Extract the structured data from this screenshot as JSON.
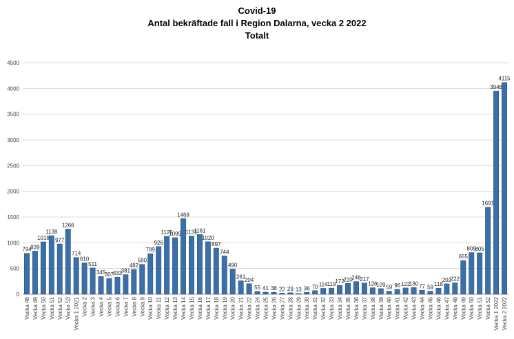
{
  "chart_data": {
    "type": "bar",
    "title": "Covid-19",
    "subtitle": "Antal bekräftade fall i Region Dalarna, vecka 2 2022",
    "subtitle2": "Totalt",
    "xlabel": "",
    "ylabel": "",
    "ylim": [
      0,
      4500
    ],
    "yticks": [
      "0",
      "500",
      "1000",
      "1500",
      "2000",
      "2500",
      "3000",
      "3500",
      "4000",
      "4500"
    ],
    "grid": true,
    "legend": "none",
    "bar_color": "#3a6fa8",
    "categories": [
      "Vecka 48",
      "Vecka 49",
      "Vecka 50",
      "Vecka 51",
      "Vecka 52",
      "Vecka 53",
      "Vecka 1 2021",
      "Vecka 2",
      "Vecka 3",
      "Vecka 4",
      "Vecka 5",
      "Vecka 6",
      "Vecka 7",
      "Vecka 8",
      "Vecka 9",
      "Vecka 10",
      "Vecka 11",
      "Vecka 12",
      "Vecka 13",
      "Vecka 14",
      "Vecka 15",
      "Vecka 16",
      "Vecka 17",
      "Vecka 18",
      "Vecka 19",
      "Vecka 20",
      "Vecka 21",
      "Vecka 22",
      "Vecka 24",
      "Vecka 25",
      "Vecka 26",
      "Vecka 27",
      "Vecka 28",
      "Vecka 29",
      "Vecka 30",
      "Vecka 31",
      "Vecka 32",
      "Vecka 33",
      "Vecka 34",
      "Vecka 35",
      "Vecka 36",
      "Vecka 37",
      "Vecka 38",
      "Vecka 39",
      "Vecka 40",
      "Vecka 41",
      "Vecka 42",
      "Vecka 43",
      "Vecka 44",
      "Vecka 45",
      "Vecka 46",
      "Vecka 47",
      "Vecka 48",
      "Vecka 49",
      "Vecka 50",
      "Vecka 51",
      "Vecka 52",
      "Vecka 1 2022",
      "Vecka 2 2022"
    ],
    "values": [
      794,
      839,
      1018,
      1138,
      977,
      1266,
      714,
      610,
      511,
      345,
      307,
      333,
      381,
      482,
      580,
      789,
      926,
      1125,
      1099,
      1469,
      1131,
      1161,
      1020,
      897,
      744,
      490,
      261,
      204,
      55,
      41,
      38,
      22,
      29,
      13,
      36,
      70,
      114,
      119,
      172,
      210,
      246,
      217,
      126,
      109,
      59,
      96,
      122,
      130,
      77,
      59,
      118,
      202,
      222,
      655,
      809,
      805,
      1691,
      3948,
      4115
    ]
  }
}
